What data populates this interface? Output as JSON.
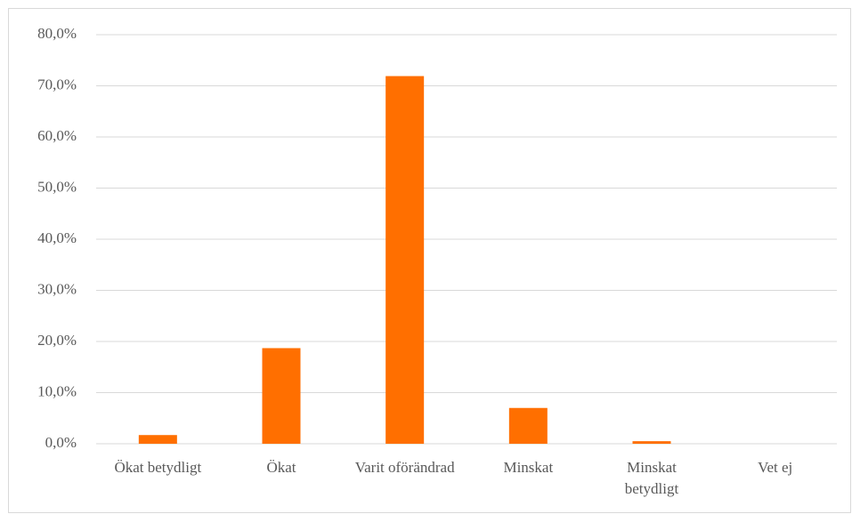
{
  "chart_data": {
    "type": "bar",
    "categories": [
      "Ökat betydligt",
      "Ökat",
      "Varit oförändrad",
      "Minskat",
      "Minskat betydligt",
      "Vet ej"
    ],
    "values": [
      1.7,
      18.7,
      71.9,
      7.0,
      0.5,
      0
    ],
    "color": "#ff6f00",
    "ylim": [
      0,
      80
    ],
    "yticks": [
      {
        "value": 0,
        "label": "0,0%"
      },
      {
        "value": 10,
        "label": "10,0%"
      },
      {
        "value": 20,
        "label": "20,0%"
      },
      {
        "value": 30,
        "label": "30,0%"
      },
      {
        "value": 40,
        "label": "40,0%"
      },
      {
        "value": 50,
        "label": "50,0%"
      },
      {
        "value": 60,
        "label": "60,0%"
      },
      {
        "value": 70,
        "label": "70,0%"
      },
      {
        "value": 80,
        "label": "80,0%"
      }
    ],
    "grid": true
  }
}
